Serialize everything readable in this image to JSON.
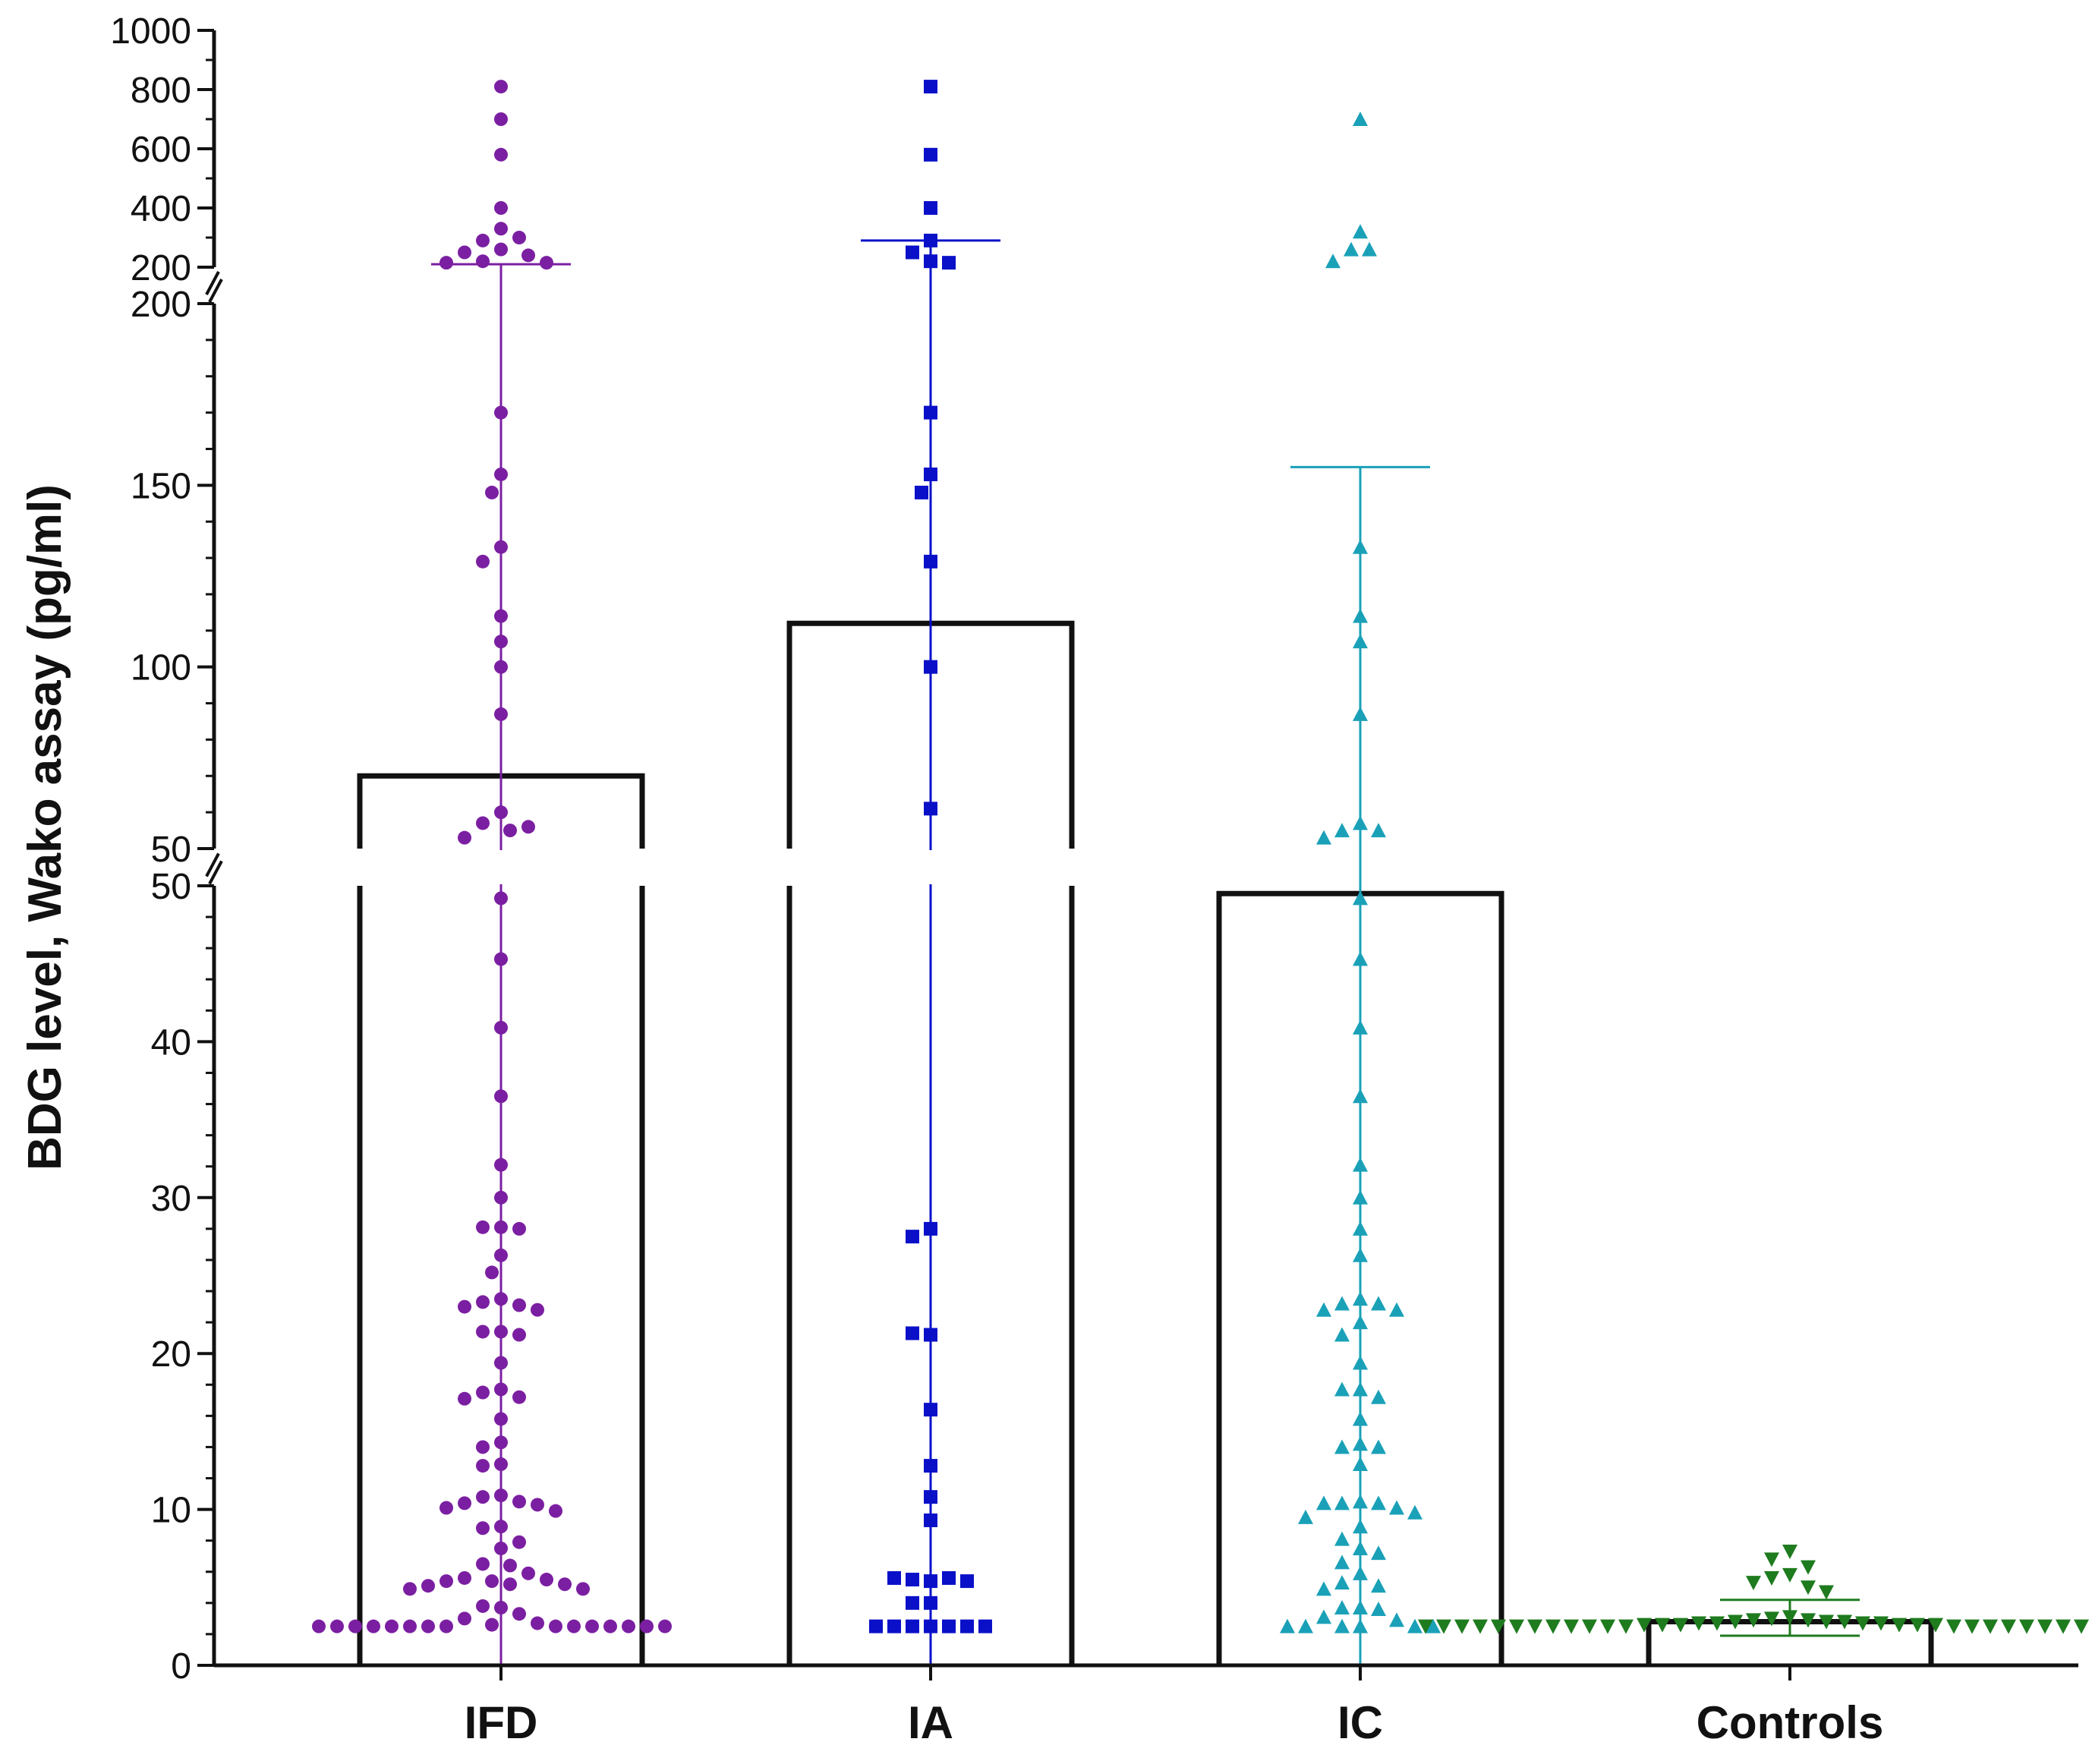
{
  "chart_data": {
    "type": "scatter",
    "title": "",
    "xlabel": "",
    "ylabel": "BDG level, Wako assay  (pg/ml)",
    "categories": [
      "IFD",
      "IA",
      "IC",
      "Controls"
    ],
    "y_axis": {
      "scale": "broken",
      "segments": [
        {
          "range": [
            0,
            50
          ],
          "ticks": [
            "0",
            "10",
            "20",
            "30",
            "40",
            "50"
          ]
        },
        {
          "range": [
            50,
            200
          ],
          "ticks": [
            "50",
            "100",
            "150",
            "200"
          ]
        },
        {
          "range": [
            200,
            1000
          ],
          "ticks": [
            "200",
            "400",
            "600",
            "800",
            "1000"
          ]
        }
      ]
    },
    "bar_outline": "#111111",
    "series": [
      {
        "category": "IFD",
        "marker": "circle",
        "color": "#7b1fa2",
        "bar_value": 70,
        "error_low": 0,
        "error_high": 210,
        "values": [
          810,
          700,
          580,
          400,
          330,
          290,
          300,
          260,
          250,
          240,
          220,
          215,
          215,
          170,
          153,
          148,
          133,
          129,
          114,
          107,
          100,
          87,
          60,
          57,
          55,
          56,
          53,
          49.2,
          45.3,
          40.9,
          36.5,
          32.1,
          30,
          28.1,
          28.1,
          28,
          26.3,
          25.2,
          23.5,
          23.3,
          23.1,
          23,
          22.8,
          21.4,
          21.4,
          21.2,
          19.4,
          17.7,
          17.5,
          17.2,
          17.1,
          15.8,
          14.3,
          14,
          12.9,
          12.8,
          10.9,
          10.8,
          10.5,
          10.4,
          10.3,
          10.1,
          9.9,
          8.9,
          8.8,
          7.9,
          7.5,
          6.5,
          6.4,
          5.9,
          5.6,
          5.5,
          5.4,
          5.4,
          5.2,
          5.2,
          5.1,
          4.9,
          4.9,
          3.7,
          3.8,
          3.3,
          3,
          2.7,
          2.6,
          2.5,
          2.5,
          2.5,
          2.5,
          2.5,
          2.5,
          2.5,
          2.5,
          2.5,
          2.5,
          2.5,
          2.5,
          2.5,
          2.5,
          2.5
        ]
      },
      {
        "category": "IA",
        "marker": "square",
        "color": "#0a10c8",
        "bar_value": 112,
        "error_low": 0,
        "error_high": 290,
        "values": [
          810,
          580,
          400,
          290,
          250,
          220,
          215,
          170,
          153,
          148,
          129,
          100,
          61,
          28,
          27.5,
          21.2,
          21.3,
          16.4,
          12.8,
          10.8,
          9.3,
          5.4,
          5.5,
          5.6,
          5.6,
          5.4,
          4,
          4,
          2.5,
          2.5,
          2.5,
          2.5,
          2.5,
          2.5,
          2.5
        ]
      },
      {
        "category": "IC",
        "marker": "triangle",
        "color": "#1aa1b8",
        "bar_value": 49.5,
        "error_low": 0,
        "error_high": 155,
        "values": [
          700,
          320,
          260,
          260,
          220,
          133,
          114,
          107,
          87,
          57,
          55,
          55,
          53,
          49.2,
          45.3,
          40.9,
          36.5,
          32.1,
          30,
          28,
          26.3,
          23.5,
          23.2,
          23.2,
          22.8,
          22.8,
          22,
          21.2,
          19.4,
          17.7,
          17.7,
          17.2,
          15.8,
          14.2,
          14,
          14,
          12.9,
          10.5,
          10.4,
          10.4,
          10.4,
          10.1,
          9.5,
          9.8,
          8.9,
          8.1,
          7.5,
          7.2,
          6.6,
          5.9,
          5.3,
          5.1,
          4.9,
          3.7,
          3.7,
          3.6,
          3.1,
          2.9,
          2.5,
          2.5,
          2.5,
          2.5,
          2.5,
          2.5
        ]
      },
      {
        "category": "Controls",
        "marker": "triangle-down",
        "color": "#1e7b1e",
        "bar_value": 2.8,
        "error_low": 1.9,
        "error_high": 4.2,
        "values": [
          7.3,
          6.8,
          6.3,
          5.8,
          5.6,
          5.3,
          5.0,
          4.7,
          3.1,
          3.0,
          2.9,
          2.9,
          2.8,
          2.8,
          2.8,
          2.7,
          2.7,
          2.7,
          2.7,
          2.6,
          2.6,
          2.6,
          2.6,
          2.6,
          2.6,
          2.5,
          2.5,
          2.5,
          2.5,
          2.5,
          2.5,
          2.5,
          2.5,
          2.5,
          2.5,
          2.5,
          2.5,
          2.5,
          2.5,
          2.5,
          2.5,
          2.5,
          2.5,
          2.5,
          2.5,
          2.5,
          2.5,
          2.5
        ]
      }
    ]
  }
}
